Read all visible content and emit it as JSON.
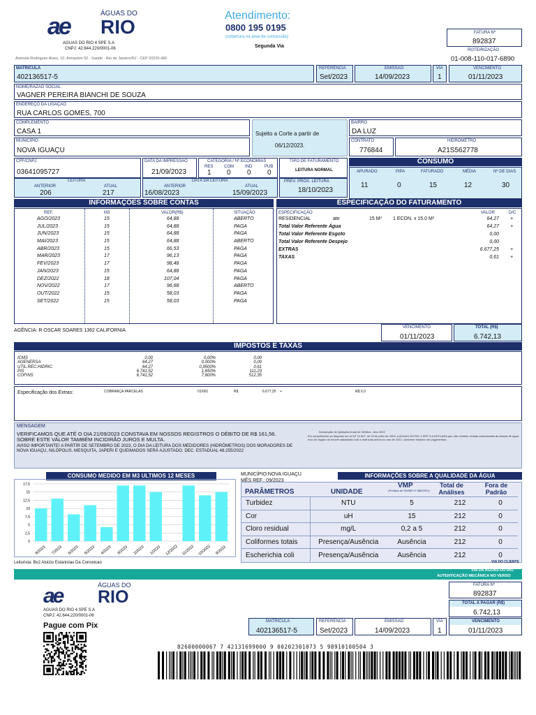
{
  "company": {
    "logo_main": "RIO",
    "logo_top": "ÁGUAS DO",
    "logo_mark": "ae",
    "name": "AGUAS DO RIO 4 SPE S.A",
    "cnpj": "CNPJ: 42.644.220/0001-06",
    "address": "Avenida Rodrigues Alves, 10, Armazém 02 - Saúde - Rio de Janeiro/RJ - CEP 20220-460"
  },
  "atendimento": {
    "title": "Atendimento:",
    "phone": "0800 195 0195",
    "note": "(cobertura na área de concessão)",
    "via": "Segunda Via"
  },
  "fatura": {
    "label": "FATURA Nº",
    "value": "892837",
    "roteirizacao_label": "ROTEIRIZAÇÃO",
    "roteirizacao": "01-008-110-017-6890"
  },
  "header": {
    "matricula_label": "MATRICULA",
    "matricula": "402136517-5",
    "referencia_label": "REFERÊNCIA",
    "referencia": "Set/2023",
    "emissao_label": "EMISSÃO",
    "emissao": "14/09/2023",
    "via_label": "VIA",
    "via": "1",
    "vencimento_label": "VENCIMENTO",
    "vencimento": "01/11/2023"
  },
  "customer": {
    "nome_label": "NOME/RAZÃO SOCIAL",
    "nome": "VAGNER PEREIRA BIANCHI DE SOUZA",
    "endereco_label": "ENDEREÇO DA LIGAÇÃO",
    "endereco": "RUA  CARLOS GOMES, 700",
    "complemento_label": "COMPLEMENTO",
    "complemento": "CASA 1",
    "bairro_label": "BAIRRO",
    "bairro": "DA LUZ",
    "municipio_label": "MUNICÍPIO",
    "municipio": "NOVA IGUAÇU",
    "contrato_label": "CONTRATO",
    "contrato": "776844",
    "hidrometro_label": "HIDROMETRO",
    "hidrometro": "A21S562778",
    "corte_notice_line1": "Sujeito a Corte a partir de",
    "corte_notice_line2": "06/12/2023.",
    "cpf_label": "CPF/CNPJ",
    "cpf": "03641095727",
    "data_impressao_label": "DATA DA IMPRESSÃO",
    "data_impressao": "21/09/2023",
    "categoria_label": "CATEGORIA / Nº ECONOMIAS",
    "cat_heads": [
      "RES",
      "COM",
      "IND",
      "PUB"
    ],
    "cat_vals": [
      "1",
      "0",
      "0",
      "0"
    ],
    "tipo_fat_label": "TIPO DE FATURAMENTO",
    "tipo_fat": "LEITURA NORMAL"
  },
  "leitura": {
    "label": "LEITURA",
    "anterior_label": "ANTERIOR",
    "anterior": "206",
    "atual_label": "ATUAL",
    "atual": "217",
    "data_label": "DATA DA LEITURA",
    "data_anterior": "16/08/2023",
    "data_atual": "15/09/2023",
    "prev_label": "PREV. PROX. LEITURA",
    "prev": "18/10/2023"
  },
  "consumo": {
    "title": "CONSUMO",
    "heads": [
      "APURADO",
      "PIPA",
      "FATURADO",
      "MÉDIA",
      "Nº DE DIAS"
    ],
    "vals": [
      "11",
      "0",
      "15",
      "12",
      "30"
    ]
  },
  "contas": {
    "title": "INFORMAÇÕES SOBRE CONTAS",
    "heads": [
      "REF.",
      "M3",
      "VALOR(R$)",
      "SITUAÇÃO"
    ],
    "rows": [
      [
        "AGO/2023",
        "15",
        "64,88",
        "ABERTO"
      ],
      [
        "JUL/2023",
        "15",
        "64,88",
        "PAGA"
      ],
      [
        "JUN/2023",
        "15",
        "64,88",
        "PAGA"
      ],
      [
        "MAI/2023",
        "15",
        "64,88",
        "ABERTO"
      ],
      [
        "ABR/2023",
        "15",
        "66,53",
        "PAGA"
      ],
      [
        "MAR/2023",
        "17",
        "96,13",
        "PAGA"
      ],
      [
        "FEV/2023",
        "17",
        "98,48",
        "PAGA"
      ],
      [
        "JAN/2023",
        "15",
        "64,88",
        "PAGA"
      ],
      [
        "DEZ/2022",
        "18",
        "107,04",
        "PAGA"
      ],
      [
        "NOV/2022",
        "17",
        "96,68",
        "ABERTO"
      ],
      [
        "OUT/2022",
        "15",
        "58,03",
        "PAGA"
      ],
      [
        "SET/2022",
        "15",
        "58,03",
        "PAGA"
      ]
    ]
  },
  "faturamento": {
    "title": "ESPECIFICAÇÃO DO FATURAMENTO",
    "spec_label": "ESPECIFICAÇÃO",
    "valor_label": "VALOR",
    "dc_label": "D/C",
    "residencial": "RESIDENCIAL",
    "ate": "ate",
    "faixa": "15  M³",
    "econ": "1 ECON.  x 15.0 M³",
    "rows": [
      [
        "",
        "64,27",
        "+"
      ],
      [
        "Total Valor Referente Água",
        "64,27",
        "+"
      ],
      [
        "Total Valor Referente Esgoto",
        "0,00",
        ""
      ],
      [
        "Total Valor Referente Despejo",
        "0,00",
        ""
      ],
      [
        "EXTRAS",
        "6.677,25",
        "+"
      ],
      [
        "TAXAS",
        "0,61",
        "+"
      ]
    ]
  },
  "agencia": "AGÊNCIA: R OSCAR SOARES 1362 CALIFORNIA",
  "total": {
    "vencimento_label": "VENCIMENTO",
    "vencimento": "01/11/2023",
    "total_label": "TOTAL (R$)",
    "total": "6.742,13"
  },
  "impostos": {
    "title": "IMPOSTOS E TAXAS",
    "names": [
      "ICMS",
      "AGENERSA",
      "UTIL.REC.HIDRIC.",
      "PIS",
      "COFINS"
    ],
    "bases": [
      "0,00",
      "64,27",
      "64,27",
      "6.741,52",
      "6.741,52"
    ],
    "rates": [
      "0,00%",
      "0,000%",
      "0,9500%",
      "1,650%",
      "7,600%"
    ],
    "vals": [
      "0,00",
      "0,00",
      "0,61",
      "111,23",
      "512,35"
    ]
  },
  "extras": {
    "label": "Especificação dos Extras:",
    "desc": "COBRANÇA PARCELAS",
    "parcela": "01/001",
    "rs": "R$",
    "valor": "6.677,25",
    "sign": "+",
    "rs2": "R$ 0,0"
  },
  "mensagem": {
    "label": "MENSAGEM",
    "line1": "VERIFICAMOS QUE ATÉ O DIA 21/09/2023 CONSTAVA EM NOSSOS REGISTROS O DÉBITO DE R$ 161,56.",
    "line2": "SOBRE ESTE VALOR TAMBÉM INCIDIRÃO JUROS E MULTA.",
    "line3": "AVISO IMPORTANTE! A PARTIR DE SETEMBRO DE 2023, O DIA DA LEITURA DOS MEDIDORES (HIDRÔMETROS) DOS MORADORES DE",
    "line4": "NOVA IGUAÇU, NILÓPOLIS, MESQUITA, JAPERI E QUEIMADOS SERÁ AJUSTADO. DEC. ESTADUAL 48.255/2022",
    "quitacao": "Declaração de Quitação Anual de Débitos - Ano 2022",
    "legal": "Em cumprimento ao disposto na Lei Nº 12.007, de 29 de julho de 2009, a AGUAS DO RIO 4 SPE S.A DECLARA que não existem dívidas relacionadas às faturas de água e/ou de esgoto do imóvel cadastrado sob a matrícula acima no ano de 2022, conforme histórico de pagamentos."
  },
  "chart_data": {
    "type": "bar",
    "title": "CONSUMO MEDIDO EM M3 ULTIMOS  12 MESES",
    "categories": [
      "8/2023",
      "7/2023",
      "6/2023",
      "5/2023",
      "4/2023",
      "3/2023",
      "2/2023",
      "1/2023",
      "12/2022",
      "11/2022",
      "10/2022",
      "9/2022"
    ],
    "values": [
      10,
      13,
      8.2,
      11,
      4.3,
      17,
      17,
      15,
      0,
      17,
      14,
      15
    ],
    "yticks": [
      "17,5",
      "15",
      "12,5",
      "10",
      "7,5",
      "5",
      "2,5",
      "0"
    ],
    "ylim": [
      0,
      17.5
    ],
    "color": "#5ef2f8"
  },
  "leiturista": "Leiturista: Bx2 Aluizio Estanislau Da Conceicao",
  "qualidade": {
    "municipio": "MUNICÍPIO:NOVA IGUAÇU",
    "mes": "MÊS REF.: 09/2023",
    "title": "INFORMAÇÕES SOBRE A QUALIDADE DA ÁGUA",
    "h_param": "PARÂMETROS",
    "h_unid": "UNIDADE",
    "h_vmp": "VMP",
    "h_vmp_note": "(Portaria de GM/MS nº 888/2021)",
    "h_total": "Total de Análises",
    "h_fora": "Fora de Padrão",
    "rows": [
      [
        "Turbidez",
        "NTU",
        "5",
        "212",
        "0"
      ],
      [
        "Cor",
        "uH",
        "15",
        "212",
        "0"
      ],
      [
        "Cloro residual",
        "mg/L",
        "0,2 a 5",
        "212",
        "0"
      ],
      [
        "Coliformes totais",
        "Presença/Ausência",
        "Ausência",
        "212",
        "0"
      ],
      [
        "Escherichia coli",
        "Presença/Ausência",
        "Ausência",
        "212",
        "0"
      ]
    ]
  },
  "via_cliente": "VIA DO CLIENTE",
  "stub": {
    "via_banco_line1": "VIA DA ÁGUAS DO RIO",
    "via_banco_line2": "AUTENTICAÇÃO MECÂNICA NO VERSO",
    "fatura_label": "FATURA Nº",
    "fatura": "892837",
    "total_label": "TOTAL A PAGAR (R$)",
    "total": "6.742,13",
    "pix": "Pague com Pix",
    "matricula_label": "MATRÍCULA",
    "matricula": "402136517-5",
    "referencia_label": "REFERÊNCIA",
    "referencia": "Set/2023",
    "emissao_label": "EMISSÃO",
    "emissao": "14/09/2023",
    "via_label": "VIA",
    "via": "1",
    "vencimento_label": "VENCIMENTO",
    "vencimento": "01/11/2023",
    "barcode_digits": "82600000067 7 42131699000 9 00202301073 5 98910100504 3"
  },
  "colors": {
    "navy": "#1c2f6b",
    "lightblue": "#d4ecf6",
    "teal": "#18a89a",
    "bar": "#5ef2f8",
    "accent": "#3fa9e0"
  }
}
